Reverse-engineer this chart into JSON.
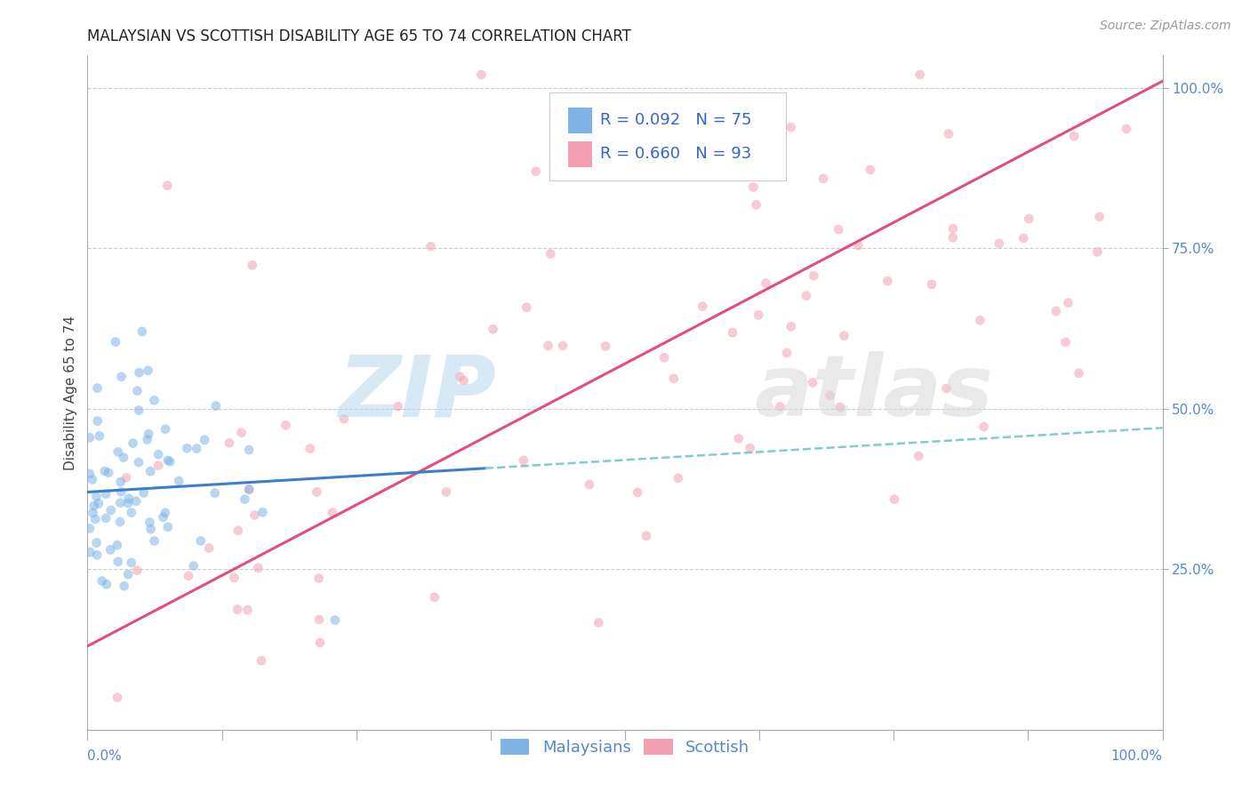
{
  "title": "MALAYSIAN VS SCOTTISH DISABILITY AGE 65 TO 74 CORRELATION CHART",
  "source_text": "Source: ZipAtlas.com",
  "ylabel": "Disability Age 65 to 74",
  "xlim": [
    0.0,
    1.0
  ],
  "ylim": [
    0.0,
    1.05
  ],
  "malaysian_color": "#7EB3E8",
  "scottish_color": "#F4A0B0",
  "malaysian_line_color": "#3A7FCC",
  "scottish_line_color": "#E0507A",
  "malaysian_dash_color": "#7ECECE",
  "legend_R_malaysian": "R = 0.092",
  "legend_N_malaysian": "N = 75",
  "legend_R_scottish": "R = 0.660",
  "legend_N_scottish": "N = 93",
  "legend_label_malaysian": "Malaysians",
  "legend_label_scottish": "Scottish",
  "watermark_zip": "ZIP",
  "watermark_atlas": "atlas",
  "background_color": "#FFFFFF",
  "grid_color": "#CCCCCC",
  "title_fontsize": 12,
  "axis_label_fontsize": 11,
  "tick_fontsize": 11,
  "legend_fontsize": 13,
  "source_fontsize": 10,
  "marker_size": 60,
  "marker_alpha": 0.55,
  "line_width": 2.2,
  "right_ytick_labels": [
    "25.0%",
    "50.0%",
    "75.0%",
    "100.0%"
  ],
  "right_ytick_positions": [
    0.25,
    0.5,
    0.75,
    1.0
  ]
}
